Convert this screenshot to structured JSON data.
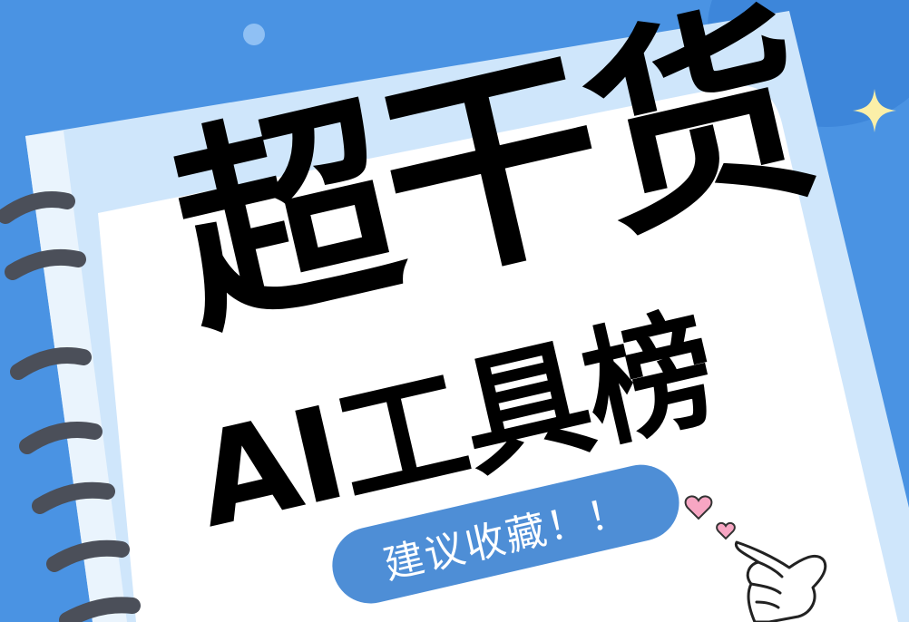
{
  "headline": "超干货",
  "subheadline": "AI工具榜",
  "badge_text": "建议收藏！！",
  "icons": {
    "sparkle": "sparkle-icon",
    "hearts": "heart-icon",
    "hand": "pointing-hand-icon"
  },
  "colors": {
    "background": "#4a93e3",
    "page": "#ffffff",
    "cover": "#cfe6fb",
    "badge": "#4e8ed6",
    "text": "#000000",
    "heart": "#f7a6c3"
  }
}
